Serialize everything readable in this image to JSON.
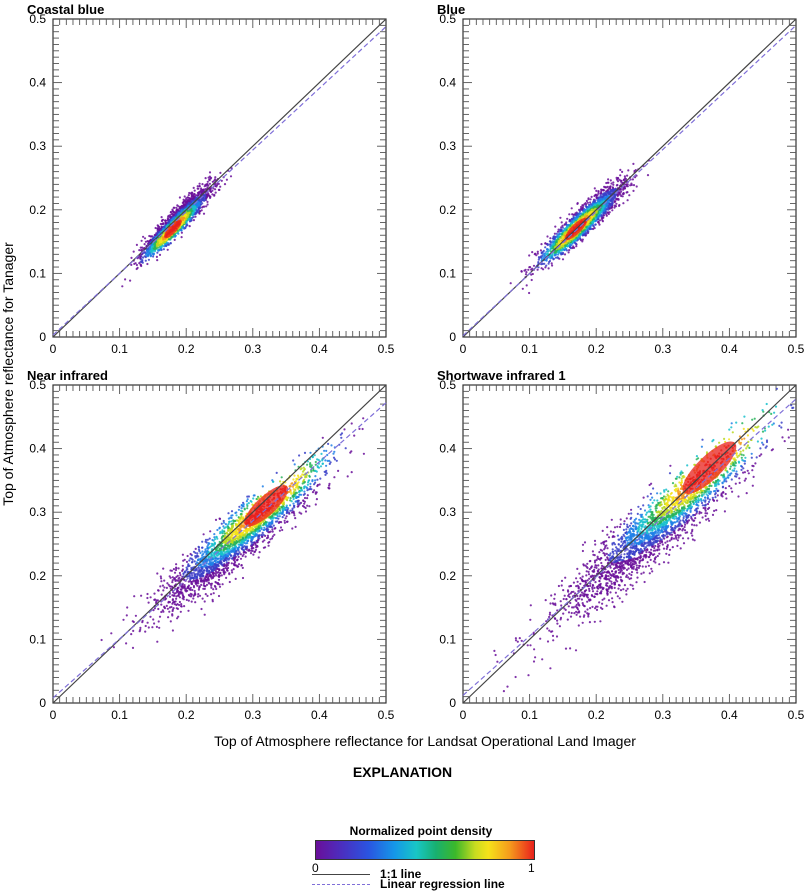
{
  "figure": {
    "xlabel": "Top of Atmosphere reflectance for Landsat Operational Land Imager",
    "ylabel": "Top of Atmosphere reflectance for Tanager"
  },
  "legend": {
    "title": "EXPLANATION",
    "colorbar_title": "Normalized point density",
    "colorbar_min": "0",
    "colorbar_max": "1",
    "colorbar_colors": [
      "#6a0f9a",
      "#2a54e0",
      "#18c6c6",
      "#3cb82a",
      "#f5e21a",
      "#f59a1c",
      "#e8201c"
    ],
    "one_to_one_label": "1:1 line",
    "regression_label": "Linear regression line",
    "one_to_one_color": "#444444",
    "regression_color": "#7f6fd8"
  },
  "chart_data": [
    {
      "type": "scatter",
      "title": "Coastal blue",
      "xlim": [
        0,
        0.5
      ],
      "ylim": [
        0,
        0.5
      ],
      "xticks": [
        "0",
        "0.1",
        "0.2",
        "0.3",
        "0.4",
        "0.5"
      ],
      "yticks": [
        "0",
        "0.1",
        "0.2",
        "0.3",
        "0.4",
        "0.5"
      ],
      "density_cloud": {
        "x_range": [
          0.13,
          0.24
        ],
        "y_range": [
          0.12,
          0.24
        ],
        "peak": [
          0.18,
          0.17
        ]
      },
      "regression_line": [
        [
          0,
          0.003
        ],
        [
          0.5,
          0.488
        ]
      ]
    },
    {
      "type": "scatter",
      "title": "Blue",
      "xlim": [
        0,
        0.5
      ],
      "ylim": [
        0,
        0.5
      ],
      "xticks": [
        "0",
        "0.1",
        "0.2",
        "0.3",
        "0.4",
        "0.5"
      ],
      "yticks": [
        "0",
        "0.1",
        "0.2",
        "0.3",
        "0.4",
        "0.5"
      ],
      "density_cloud": {
        "x_range": [
          0.11,
          0.25
        ],
        "y_range": [
          0.11,
          0.25
        ],
        "peak": [
          0.17,
          0.17
        ]
      },
      "regression_line": [
        [
          0,
          0.002
        ],
        [
          0.5,
          0.49
        ]
      ]
    },
    {
      "type": "scatter",
      "title": "Near infrared",
      "xlim": [
        0,
        0.5
      ],
      "ylim": [
        0,
        0.5
      ],
      "xticks": [
        "0",
        "0.1",
        "0.2",
        "0.3",
        "0.4",
        "0.5"
      ],
      "yticks": [
        "0",
        "0.1",
        "0.2",
        "0.3",
        "0.4",
        "0.5"
      ],
      "density_cloud": {
        "x_range": [
          0.14,
          0.42
        ],
        "y_range": [
          0.13,
          0.39
        ],
        "peak": [
          0.32,
          0.31
        ]
      },
      "regression_line": [
        [
          0,
          0.008
        ],
        [
          0.5,
          0.472
        ]
      ]
    },
    {
      "type": "scatter",
      "title": "Shortwave infrared 1",
      "xlim": [
        0,
        0.5
      ],
      "ylim": [
        0,
        0.5
      ],
      "xticks": [
        "0",
        "0.1",
        "0.2",
        "0.3",
        "0.4",
        "0.5"
      ],
      "yticks": [
        "0",
        "0.1",
        "0.2",
        "0.3",
        "0.4",
        "0.5"
      ],
      "density_cloud": {
        "x_range": [
          0.12,
          0.46
        ],
        "y_range": [
          0.11,
          0.44
        ],
        "peak": [
          0.37,
          0.37
        ]
      },
      "regression_line": [
        [
          0,
          0.012
        ],
        [
          0.5,
          0.478
        ]
      ]
    }
  ]
}
